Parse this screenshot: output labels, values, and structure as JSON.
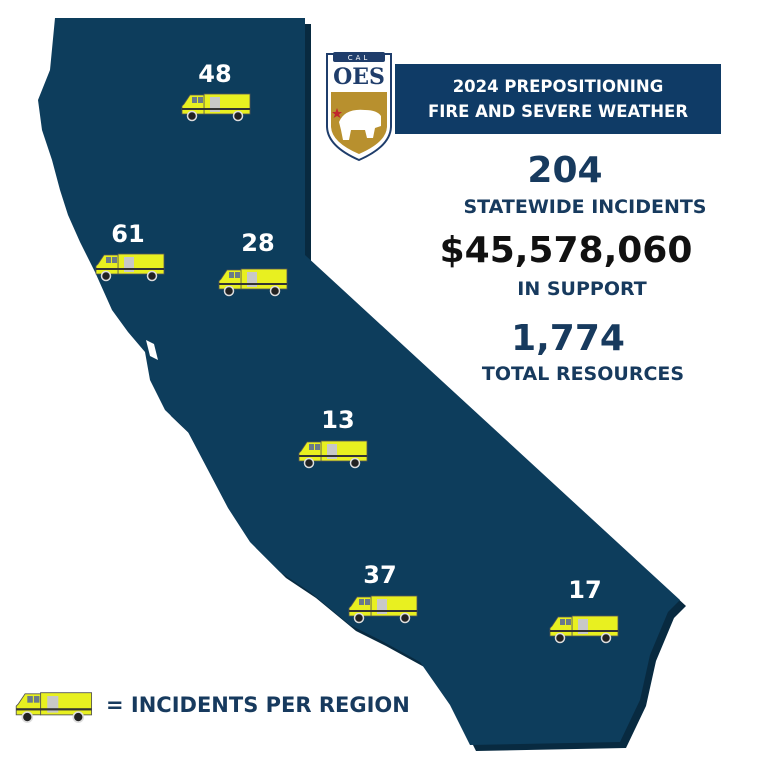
{
  "logo": {
    "top_text": "CAL",
    "main_text": "OES"
  },
  "header": {
    "line1": "2024 PREPOSITIONING",
    "line2": "FIRE AND SEVERE WEATHER"
  },
  "stats": [
    {
      "value": "204",
      "label": "STATEWIDE INCIDENTS"
    },
    {
      "value": "$45,578,060",
      "label": "IN SUPPORT"
    },
    {
      "value": "1,774",
      "label": "TOTAL RESOURCES"
    }
  ],
  "regions": [
    {
      "count": "48"
    },
    {
      "count": "61"
    },
    {
      "count": "28"
    },
    {
      "count": "13"
    },
    {
      "count": "37"
    },
    {
      "count": "17"
    }
  ],
  "legend": {
    "icon": "fire-engine-icon",
    "text": "= INCIDENTS PER REGION"
  },
  "colors": {
    "map": "#0d3d5c",
    "header": "#0f3b66",
    "truck": "#e8f020",
    "logo_gold": "#b8902e"
  }
}
